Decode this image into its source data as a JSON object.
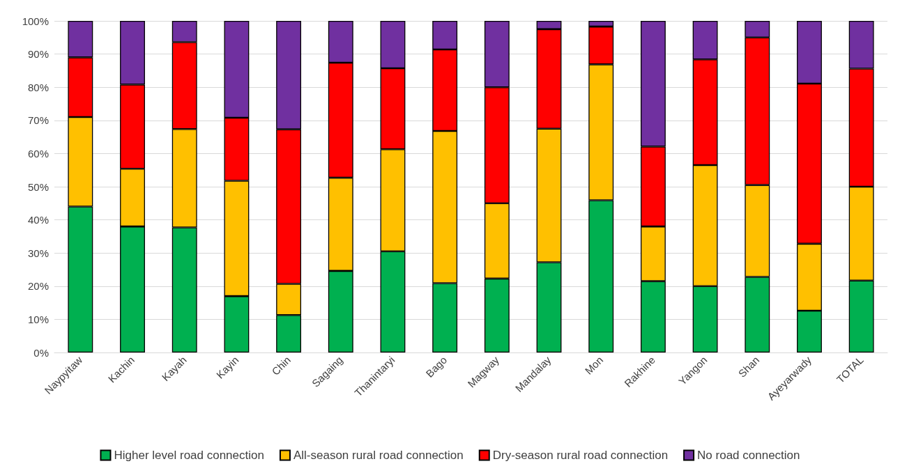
{
  "chart_data": {
    "type": "bar",
    "stacked": true,
    "categories": [
      "Naypyitaw",
      "Kachin",
      "Kayah",
      "Kayin",
      "Chin",
      "Sagaing",
      "Thanintaryi",
      "Bago",
      "Magway",
      "Mandalay",
      "Mon",
      "Rakhine",
      "Yangon",
      "Shan",
      "Ayeyarwady",
      "TOTAL"
    ],
    "series": [
      {
        "name": "Higher level road connection",
        "color": "#00b050",
        "values": [
          44,
          38,
          37.7,
          17,
          11.3,
          24.6,
          30.5,
          20.9,
          22.3,
          27.2,
          45.9,
          21.5,
          20,
          22.8,
          12.6,
          21.7
        ]
      },
      {
        "name": "All-season rural road connection",
        "color": "#ffc000",
        "values": [
          27,
          17.4,
          29.7,
          34.8,
          9.4,
          28.1,
          30.8,
          45.9,
          22.7,
          40.3,
          41,
          16.5,
          36.5,
          27.7,
          20.2,
          28.3
        ]
      },
      {
        "name": "Dry-season rural road connection",
        "color": "#ff0000",
        "values": [
          18,
          25.4,
          26.2,
          19,
          46.6,
          34.7,
          24.4,
          24.6,
          35,
          30,
          11.4,
          24.1,
          31.9,
          44.5,
          48.3,
          35.6
        ]
      },
      {
        "name": "No road connection",
        "color": "#7030a0",
        "values": [
          11,
          19.2,
          6.4,
          29.2,
          32.7,
          12.6,
          14.3,
          8.6,
          20,
          2.5,
          1.7,
          37.9,
          11.6,
          5,
          18.9,
          14.4
        ]
      }
    ],
    "ylim": [
      0,
      100
    ],
    "yticks": [
      {
        "value": 0,
        "label": "0%"
      },
      {
        "value": 10,
        "label": "10%"
      },
      {
        "value": 20,
        "label": "20%"
      },
      {
        "value": 30,
        "label": "30%"
      },
      {
        "value": 40,
        "label": "40%"
      },
      {
        "value": 50,
        "label": "50%"
      },
      {
        "value": 60,
        "label": "60%"
      },
      {
        "value": 70,
        "label": "70%"
      },
      {
        "value": 80,
        "label": "80%"
      },
      {
        "value": 90,
        "label": "90%"
      },
      {
        "value": 100,
        "label": "100%"
      }
    ],
    "grid": "y",
    "legend": "bottom"
  }
}
